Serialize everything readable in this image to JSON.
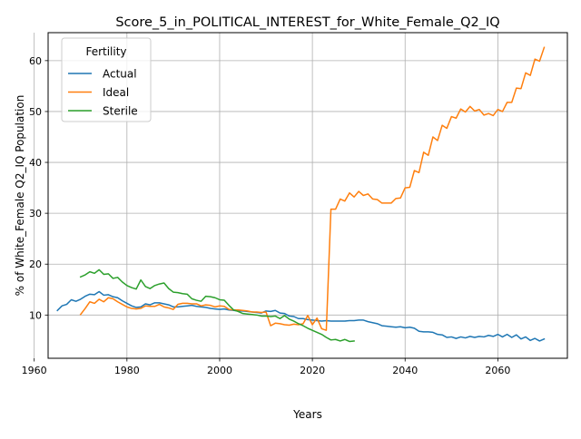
{
  "chart_data": {
    "type": "line",
    "title": "Score_5_in_POLITICAL_INTEREST_for_White_Female_Q2_IQ",
    "xlabel": "Years",
    "ylabel": "% of White_Female Q2_IQ Population",
    "xlim": [
      1963,
      2075
    ],
    "ylim": [
      1.5,
      65.5
    ],
    "xticks": [
      1960,
      1980,
      2000,
      2020,
      2040,
      2060
    ],
    "yticks": [
      10,
      20,
      30,
      40,
      50,
      60
    ],
    "grid": true,
    "legend": {
      "title": "Fertility",
      "placement": "top-left"
    },
    "series": [
      {
        "name": "Actual",
        "color": "#1f77b4",
        "points": [
          [
            1965,
            10.9
          ],
          [
            1966,
            11.8
          ],
          [
            1967,
            12.1
          ],
          [
            1968,
            13.0
          ],
          [
            1969,
            12.7
          ],
          [
            1970,
            13.1
          ],
          [
            1971,
            13.7
          ],
          [
            1972,
            14.1
          ],
          [
            1973,
            14.0
          ],
          [
            1974,
            14.6
          ],
          [
            1975,
            13.9
          ],
          [
            1976,
            14.0
          ],
          [
            1977,
            13.6
          ],
          [
            1978,
            13.4
          ],
          [
            1979,
            12.8
          ],
          [
            1980,
            12.3
          ],
          [
            1981,
            11.8
          ],
          [
            1982,
            11.5
          ],
          [
            1983,
            11.6
          ],
          [
            1984,
            12.2
          ],
          [
            1985,
            12.0
          ],
          [
            1986,
            12.4
          ],
          [
            1987,
            12.4
          ],
          [
            1988,
            12.2
          ],
          [
            1989,
            12.0
          ],
          [
            1990,
            11.6
          ],
          [
            1991,
            11.6
          ],
          [
            1992,
            11.7
          ],
          [
            1993,
            11.8
          ],
          [
            1994,
            11.9
          ],
          [
            1995,
            11.7
          ],
          [
            1996,
            11.6
          ],
          [
            1997,
            11.5
          ],
          [
            1998,
            11.3
          ],
          [
            1999,
            11.2
          ],
          [
            2000,
            11.1
          ],
          [
            2001,
            11.2
          ],
          [
            2002,
            11.0
          ],
          [
            2003,
            10.9
          ],
          [
            2004,
            10.8
          ],
          [
            2005,
            10.8
          ],
          [
            2006,
            10.7
          ],
          [
            2007,
            10.6
          ],
          [
            2008,
            10.5
          ],
          [
            2009,
            10.4
          ],
          [
            2010,
            10.8
          ],
          [
            2011,
            10.7
          ],
          [
            2012,
            10.9
          ],
          [
            2013,
            10.4
          ],
          [
            2014,
            10.3
          ],
          [
            2015,
            9.8
          ],
          [
            2016,
            9.7
          ],
          [
            2017,
            9.3
          ],
          [
            2018,
            9.3
          ],
          [
            2019,
            9.1
          ],
          [
            2020,
            9.0
          ],
          [
            2021,
            8.9
          ],
          [
            2022,
            8.8
          ],
          [
            2023,
            8.9
          ],
          [
            2024,
            8.8
          ],
          [
            2025,
            8.8
          ],
          [
            2026,
            8.8
          ],
          [
            2027,
            8.8
          ],
          [
            2028,
            8.9
          ],
          [
            2029,
            8.9
          ],
          [
            2030,
            9.0
          ],
          [
            2031,
            9.0
          ],
          [
            2032,
            8.7
          ],
          [
            2033,
            8.5
          ],
          [
            2034,
            8.3
          ],
          [
            2035,
            7.9
          ],
          [
            2036,
            7.8
          ],
          [
            2037,
            7.7
          ],
          [
            2038,
            7.6
          ],
          [
            2039,
            7.7
          ],
          [
            2040,
            7.5
          ],
          [
            2041,
            7.6
          ],
          [
            2042,
            7.4
          ],
          [
            2043,
            6.8
          ],
          [
            2044,
            6.7
          ],
          [
            2045,
            6.7
          ],
          [
            2046,
            6.6
          ],
          [
            2047,
            6.2
          ],
          [
            2048,
            6.1
          ],
          [
            2049,
            5.6
          ],
          [
            2050,
            5.7
          ],
          [
            2051,
            5.4
          ],
          [
            2052,
            5.7
          ],
          [
            2053,
            5.5
          ],
          [
            2054,
            5.8
          ],
          [
            2055,
            5.6
          ],
          [
            2056,
            5.8
          ],
          [
            2057,
            5.7
          ],
          [
            2058,
            6.0
          ],
          [
            2059,
            5.8
          ],
          [
            2060,
            6.2
          ],
          [
            2061,
            5.7
          ],
          [
            2062,
            6.2
          ],
          [
            2063,
            5.6
          ],
          [
            2064,
            6.1
          ],
          [
            2065,
            5.3
          ],
          [
            2066,
            5.7
          ],
          [
            2067,
            5.0
          ],
          [
            2068,
            5.4
          ],
          [
            2069,
            4.9
          ],
          [
            2070,
            5.3
          ]
        ]
      },
      {
        "name": "Ideal",
        "color": "#ff7f0e",
        "points": [
          [
            1970,
            10.1
          ],
          [
            1971,
            11.3
          ],
          [
            1972,
            12.6
          ],
          [
            1973,
            12.3
          ],
          [
            1974,
            13.1
          ],
          [
            1975,
            12.6
          ],
          [
            1976,
            13.4
          ],
          [
            1977,
            13.2
          ],
          [
            1978,
            12.6
          ],
          [
            1979,
            12.1
          ],
          [
            1980,
            11.6
          ],
          [
            1981,
            11.3
          ],
          [
            1982,
            11.2
          ],
          [
            1983,
            11.3
          ],
          [
            1984,
            11.8
          ],
          [
            1985,
            11.7
          ],
          [
            1986,
            11.7
          ],
          [
            1987,
            12.1
          ],
          [
            1988,
            11.6
          ],
          [
            1989,
            11.4
          ],
          [
            1990,
            11.1
          ],
          [
            1991,
            12.1
          ],
          [
            1992,
            12.3
          ],
          [
            1993,
            12.3
          ],
          [
            1994,
            12.2
          ],
          [
            1995,
            12.2
          ],
          [
            1996,
            11.8
          ],
          [
            1997,
            12.0
          ],
          [
            1998,
            11.9
          ],
          [
            1999,
            11.6
          ],
          [
            2000,
            11.8
          ],
          [
            2001,
            11.7
          ],
          [
            2002,
            11.1
          ],
          [
            2003,
            11.0
          ],
          [
            2004,
            11.0
          ],
          [
            2005,
            10.9
          ],
          [
            2006,
            10.8
          ],
          [
            2007,
            10.6
          ],
          [
            2008,
            10.6
          ],
          [
            2009,
            10.5
          ],
          [
            2010,
            10.6
          ],
          [
            2011,
            7.9
          ],
          [
            2012,
            8.4
          ],
          [
            2013,
            8.3
          ],
          [
            2014,
            8.1
          ],
          [
            2015,
            8.0
          ],
          [
            2016,
            8.2
          ],
          [
            2017,
            8.1
          ],
          [
            2018,
            8.3
          ],
          [
            2019,
            9.9
          ],
          [
            2020,
            8.1
          ],
          [
            2021,
            9.4
          ],
          [
            2022,
            7.3
          ],
          [
            2023,
            7.0
          ],
          [
            2024,
            30.8
          ],
          [
            2025,
            30.8
          ],
          [
            2026,
            32.8
          ],
          [
            2027,
            32.4
          ],
          [
            2028,
            34.0
          ],
          [
            2029,
            33.2
          ],
          [
            2030,
            34.3
          ],
          [
            2031,
            33.5
          ],
          [
            2032,
            33.8
          ],
          [
            2033,
            32.8
          ],
          [
            2034,
            32.7
          ],
          [
            2035,
            32.0
          ],
          [
            2036,
            32.0
          ],
          [
            2037,
            32.0
          ],
          [
            2038,
            32.9
          ],
          [
            2039,
            33.0
          ],
          [
            2040,
            35.0
          ],
          [
            2041,
            35.1
          ],
          [
            2042,
            38.4
          ],
          [
            2043,
            38.0
          ],
          [
            2044,
            42.0
          ],
          [
            2045,
            41.4
          ],
          [
            2046,
            45.0
          ],
          [
            2047,
            44.3
          ],
          [
            2048,
            47.3
          ],
          [
            2049,
            46.7
          ],
          [
            2050,
            49.0
          ],
          [
            2051,
            48.7
          ],
          [
            2052,
            50.5
          ],
          [
            2053,
            49.9
          ],
          [
            2054,
            51.0
          ],
          [
            2055,
            50.1
          ],
          [
            2056,
            50.4
          ],
          [
            2057,
            49.3
          ],
          [
            2058,
            49.6
          ],
          [
            2059,
            49.2
          ],
          [
            2060,
            50.4
          ],
          [
            2061,
            50.0
          ],
          [
            2062,
            51.8
          ],
          [
            2063,
            51.8
          ],
          [
            2064,
            54.6
          ],
          [
            2065,
            54.5
          ],
          [
            2066,
            57.6
          ],
          [
            2067,
            57.1
          ],
          [
            2068,
            60.3
          ],
          [
            2069,
            59.9
          ],
          [
            2070,
            62.6
          ]
        ]
      },
      {
        "name": "Sterile",
        "color": "#2ca02c",
        "points": [
          [
            1970,
            17.5
          ],
          [
            1971,
            17.9
          ],
          [
            1972,
            18.5
          ],
          [
            1973,
            18.2
          ],
          [
            1974,
            18.9
          ],
          [
            1975,
            18.0
          ],
          [
            1976,
            18.1
          ],
          [
            1977,
            17.2
          ],
          [
            1978,
            17.4
          ],
          [
            1979,
            16.5
          ],
          [
            1980,
            15.8
          ],
          [
            1981,
            15.4
          ],
          [
            1982,
            15.1
          ],
          [
            1983,
            16.9
          ],
          [
            1984,
            15.6
          ],
          [
            1985,
            15.2
          ],
          [
            1986,
            15.8
          ],
          [
            1987,
            16.1
          ],
          [
            1988,
            16.3
          ],
          [
            1989,
            15.2
          ],
          [
            1990,
            14.5
          ],
          [
            1991,
            14.4
          ],
          [
            1992,
            14.2
          ],
          [
            1993,
            14.1
          ],
          [
            1994,
            13.2
          ],
          [
            1995,
            12.9
          ],
          [
            1996,
            12.7
          ],
          [
            1997,
            13.7
          ],
          [
            1998,
            13.6
          ],
          [
            1999,
            13.4
          ],
          [
            2000,
            13.0
          ],
          [
            2001,
            12.9
          ],
          [
            2002,
            11.9
          ],
          [
            2003,
            11.0
          ],
          [
            2004,
            10.7
          ],
          [
            2005,
            10.3
          ],
          [
            2006,
            10.2
          ],
          [
            2007,
            10.1
          ],
          [
            2008,
            10.0
          ],
          [
            2009,
            9.8
          ],
          [
            2010,
            9.8
          ],
          [
            2011,
            9.7
          ],
          [
            2012,
            9.8
          ],
          [
            2013,
            9.3
          ],
          [
            2014,
            9.9
          ],
          [
            2015,
            9.2
          ],
          [
            2016,
            8.8
          ],
          [
            2017,
            8.3
          ],
          [
            2018,
            7.9
          ],
          [
            2019,
            7.4
          ],
          [
            2020,
            7.0
          ],
          [
            2021,
            6.6
          ],
          [
            2022,
            6.2
          ],
          [
            2023,
            5.6
          ],
          [
            2024,
            5.1
          ],
          [
            2025,
            5.2
          ],
          [
            2026,
            4.9
          ],
          [
            2027,
            5.2
          ],
          [
            2028,
            4.8
          ],
          [
            2029,
            4.9
          ]
        ]
      }
    ]
  }
}
